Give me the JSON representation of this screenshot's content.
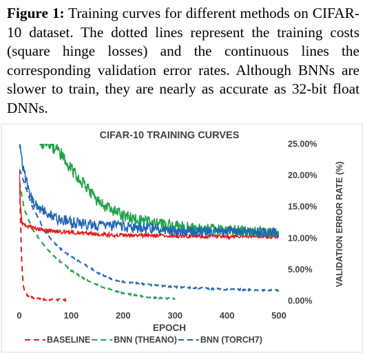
{
  "caption": {
    "label": "Figure 1:",
    "text": "Training curves for different methods on CIFAR-10 dataset. The dotted lines represent the training costs (square hinge losses) and the continuous lines the corresponding validation error rates. Although BNNs are slower to train, they are nearly as accurate as 32-bit float DNNs."
  },
  "chart_data": {
    "type": "line",
    "title": "CIFAR-10 TRAINING CURVES",
    "xlabel": "EPOCH",
    "ylabel": "VALIDATION ERROR RATE (%)",
    "xlim": [
      0,
      500
    ],
    "ylim": [
      0,
      25
    ],
    "x_ticks": [
      "0",
      "100",
      "200",
      "300",
      "400",
      "500"
    ],
    "y_ticks": [
      "0.00%",
      "5.00%",
      "10.00%",
      "15.00%",
      "20.00%",
      "25.00%"
    ],
    "grid": false,
    "legend_position": "bottom",
    "series": [
      {
        "name": "BASELINE",
        "color": "#e31a1c",
        "style": "validation",
        "x": [
          0,
          2,
          5,
          10,
          20,
          30,
          50,
          75,
          100,
          150,
          200,
          250,
          300,
          400,
          500
        ],
        "y": [
          21,
          15,
          12.5,
          12,
          11.8,
          11.5,
          11.2,
          11,
          10.9,
          10.6,
          10.4,
          10.4,
          10.3,
          10.2,
          10.2
        ]
      },
      {
        "name": "BASELINE",
        "color": "#e31a1c",
        "style": "training",
        "x": [
          0,
          2,
          4,
          6,
          8,
          10,
          15,
          20,
          30,
          50,
          90
        ],
        "y": [
          21,
          14,
          7.5,
          4.2,
          2.3,
          1.5,
          0.9,
          0.6,
          0.4,
          0.2,
          0.1
        ]
      },
      {
        "name": "BNN (THEANO)",
        "color": "#1fa048",
        "style": "validation",
        "x": [
          40,
          50,
          75,
          100,
          125,
          150,
          175,
          200,
          250,
          300,
          350,
          400,
          500
        ],
        "y": [
          25,
          25,
          24,
          21,
          18.5,
          16,
          14.5,
          13.5,
          12.5,
          11.8,
          11.4,
          11.2,
          11
        ],
        "noise": 1.0
      },
      {
        "name": "BNN (THEANO)",
        "color": "#1fa048",
        "style": "training",
        "x": [
          0,
          10,
          25,
          50,
          75,
          100,
          125,
          150,
          175,
          200,
          225,
          250,
          300
        ],
        "y": [
          19,
          14.5,
          11.5,
          8.5,
          6.5,
          4.8,
          3.5,
          2.5,
          1.8,
          1.2,
          0.8,
          0.5,
          0.3
        ]
      },
      {
        "name": "BNN (TORCH7)",
        "color": "#1f66b3",
        "style": "validation",
        "x": [
          0,
          10,
          25,
          50,
          75,
          100,
          150,
          200,
          250,
          300,
          350,
          400,
          500
        ],
        "y": [
          25,
          20,
          16,
          14,
          13,
          12.5,
          12,
          11.8,
          11.5,
          11.2,
          11,
          11,
          10.8
        ],
        "noise": 0.9
      },
      {
        "name": "BNN (TORCH7)",
        "color": "#1f66b3",
        "style": "training",
        "x": [
          0,
          25,
          50,
          75,
          100,
          125,
          150,
          175,
          200,
          250,
          300,
          350,
          400,
          500
        ],
        "y": [
          21,
          15,
          11,
          8.5,
          7,
          5.8,
          4.5,
          3.5,
          3,
          2.5,
          2.2,
          2,
          1.8,
          1.6
        ]
      }
    ]
  }
}
